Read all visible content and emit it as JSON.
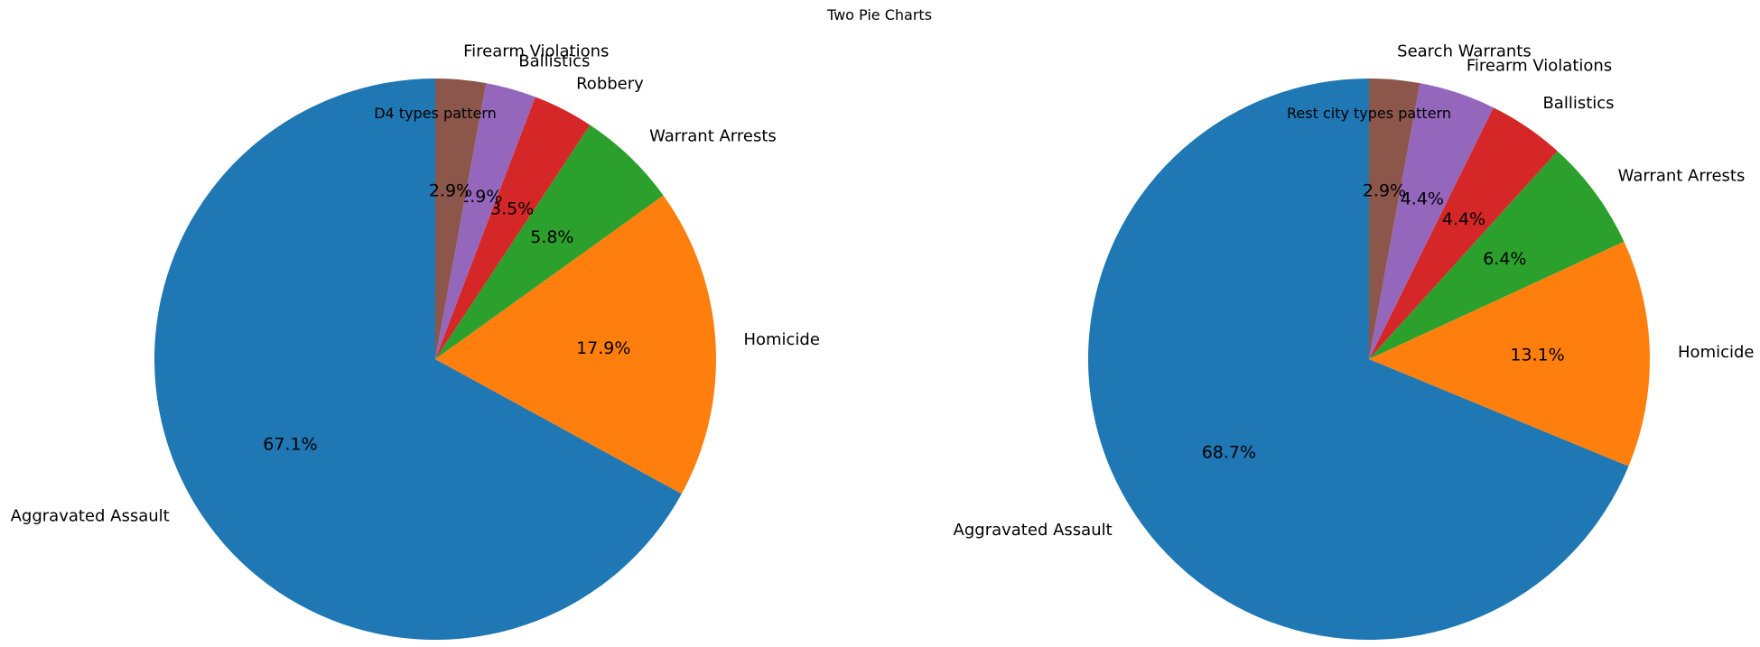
{
  "figure": {
    "title": "Two Pie Charts"
  },
  "chart_data": [
    {
      "type": "pie",
      "title": "D4 types pattern",
      "start_angle_deg": 90,
      "direction": "counterclockwise",
      "labels": [
        "Aggravated Assault",
        "Homicide",
        "Warrant Arrests",
        "Robbery",
        "Ballistics",
        "Firearm Violations"
      ],
      "values": [
        67.1,
        17.9,
        5.8,
        3.5,
        2.9,
        2.9
      ],
      "value_labels": [
        "67.1%",
        "17.9%",
        "5.8%",
        "3.5%",
        "2.9%",
        "2.9%"
      ],
      "colors": [
        "#1f77b4",
        "#ff7f0e",
        "#2ca02c",
        "#d62728",
        "#9467bd",
        "#8c564b"
      ]
    },
    {
      "type": "pie",
      "title": "Rest city types pattern",
      "start_angle_deg": 90,
      "direction": "counterclockwise",
      "labels": [
        "Aggravated Assault",
        "Homicide",
        "Warrant Arrests",
        "Ballistics",
        "Firearm Violations",
        "Search Warrants"
      ],
      "values": [
        68.7,
        13.1,
        6.4,
        4.4,
        4.4,
        2.9
      ],
      "value_labels": [
        "68.7%",
        "13.1%",
        "6.4%",
        "4.4%",
        "4.4%",
        "2.9%"
      ],
      "colors": [
        "#1f77b4",
        "#ff7f0e",
        "#2ca02c",
        "#d62728",
        "#9467bd",
        "#8c564b"
      ]
    }
  ]
}
